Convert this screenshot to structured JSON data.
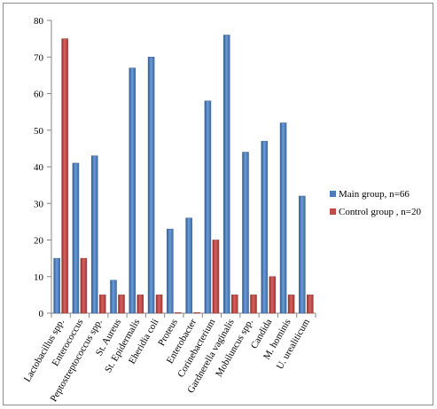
{
  "chart_data": {
    "type": "bar",
    "categories": [
      "Lactobacillus spp.",
      "Enterococcus",
      "Peptostreptococcus spp.",
      "St. Aureus",
      "St. Epidermalis",
      "Eheridia coli",
      "Proteus",
      "Enterobacter",
      "Corinebacterium",
      "Gardnerella vaginalis",
      "Mobiluncus spp.",
      "Candida",
      "M. hominis",
      "U. urealiticum"
    ],
    "series": [
      {
        "name": "Main group, n=66",
        "color": "#4a7ebb",
        "values": [
          15,
          41,
          43,
          9,
          67,
          70,
          23,
          26,
          58,
          76,
          44,
          47,
          52,
          32
        ]
      },
      {
        "name": "Control group , n=20",
        "color": "#be4b48",
        "values": [
          75,
          15,
          5,
          5,
          5,
          5,
          0,
          0,
          20,
          5,
          5,
          10,
          5,
          5
        ]
      }
    ],
    "ylim": [
      0,
      80
    ],
    "yticks": [
      "0",
      "10",
      "20",
      "30",
      "40",
      "50",
      "60",
      "70",
      "80"
    ],
    "grid": false,
    "legend_position": "right"
  }
}
